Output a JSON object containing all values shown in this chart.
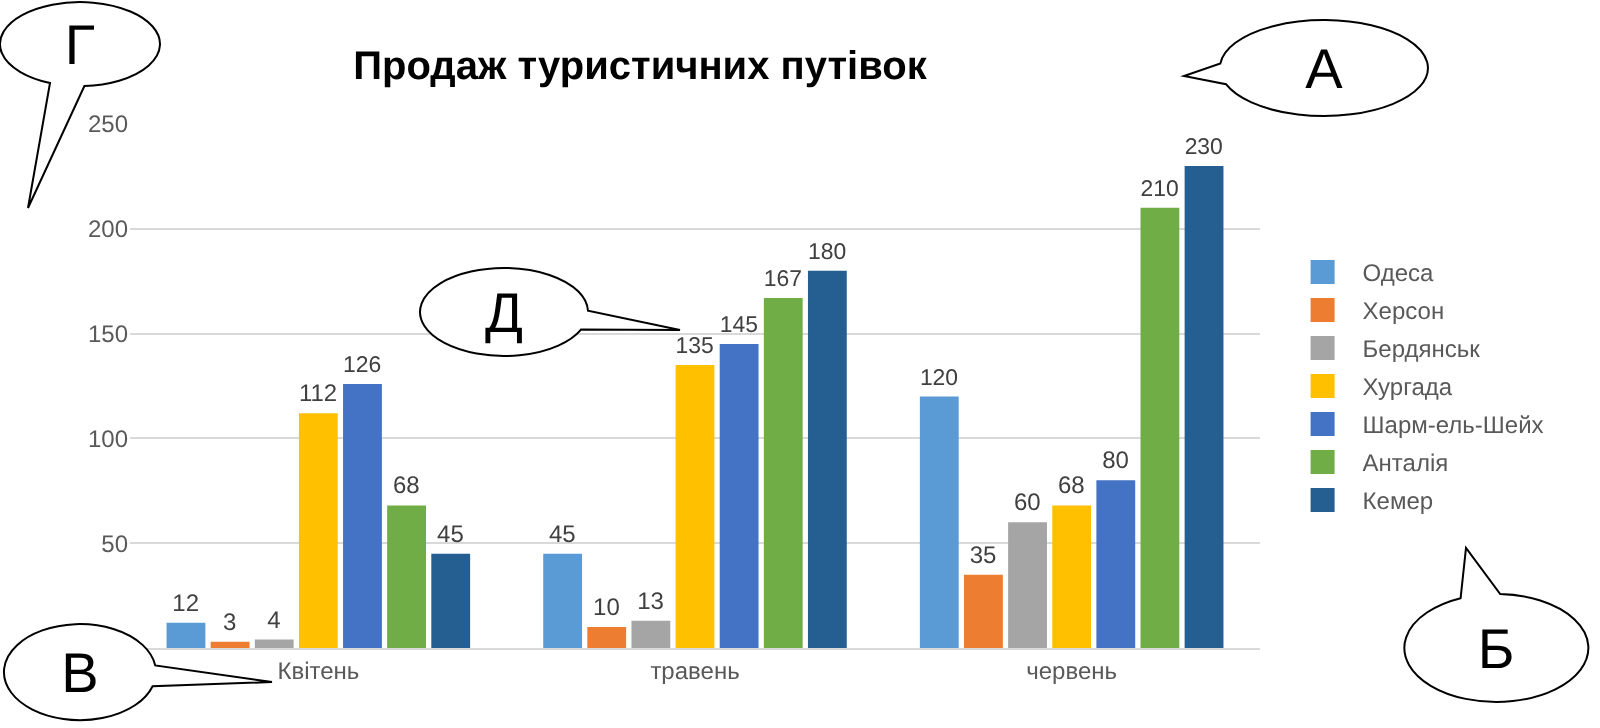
{
  "chart_data": {
    "type": "bar",
    "title": "Продаж туристичних путівок",
    "categories": [
      "Квітень",
      "травень",
      "червень"
    ],
    "series": [
      {
        "name": "Одеса",
        "color": "#5b9bd5",
        "values": [
          12,
          45,
          120
        ]
      },
      {
        "name": "Херсон",
        "color": "#ed7d31",
        "values": [
          3,
          10,
          35
        ]
      },
      {
        "name": "Бердянськ",
        "color": "#a5a5a5",
        "values": [
          4,
          13,
          60
        ]
      },
      {
        "name": "Хургада",
        "color": "#ffc000",
        "values": [
          112,
          135,
          68
        ]
      },
      {
        "name": "Шарм-ель-Шейх",
        "color": "#4472c4",
        "values": [
          126,
          145,
          80
        ]
      },
      {
        "name": "Анталія",
        "color": "#70ad47",
        "values": [
          68,
          167,
          210
        ]
      },
      {
        "name": "Кемер",
        "color": "#255e91",
        "values": [
          45,
          180,
          230
        ]
      }
    ],
    "ylim": [
      0,
      250
    ],
    "yticks": [
      50,
      100,
      150,
      200,
      250
    ],
    "grid": "y",
    "legend": "right",
    "data_labels": true,
    "annotations": [
      "Г",
      "А",
      "Б",
      "В",
      "Д"
    ]
  }
}
